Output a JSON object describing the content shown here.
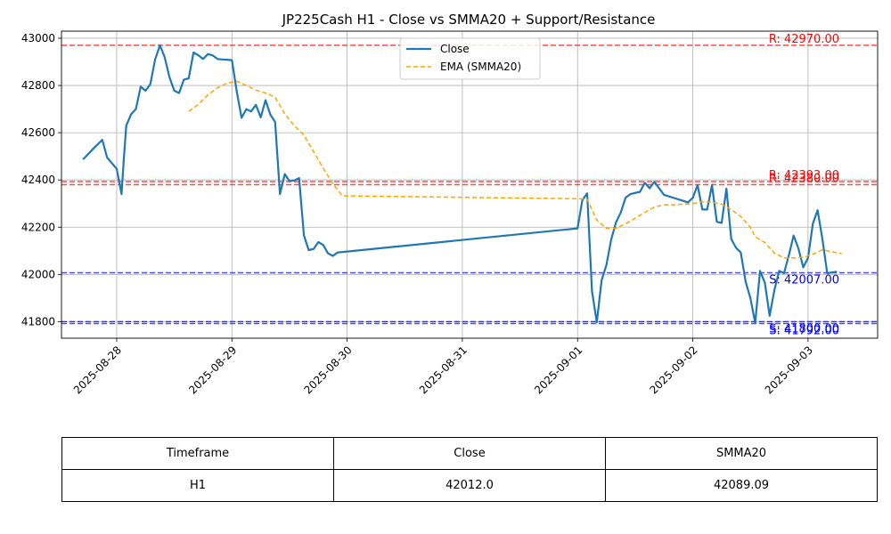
{
  "chart_data": {
    "type": "line",
    "title": "JP225Cash H1 - Close vs SMMA20 + Support/Resistance",
    "xlabel": "",
    "ylabel": "",
    "ylim": [
      41730,
      43030
    ],
    "xlim": [
      "2025-08-27 12:30",
      "2025-09-03 14:30"
    ],
    "y_ticks": [
      41800,
      42000,
      42200,
      42400,
      42600,
      42800,
      43000
    ],
    "x_ticks": [
      "2025-08-28",
      "2025-08-29",
      "2025-08-30",
      "2025-08-31",
      "2025-09-01",
      "2025-09-02",
      "2025-09-03"
    ],
    "grid": true,
    "legend_position": "top-center",
    "series": [
      {
        "name": "Close",
        "color": "#1f77b4",
        "style": "solid",
        "points": [
          [
            "2025-08-27 17:00",
            42487
          ],
          [
            "2025-08-27 19:00",
            42530
          ],
          [
            "2025-08-27 21:00",
            42570
          ],
          [
            "2025-08-27 22:00",
            42495
          ],
          [
            "2025-08-28 00:00",
            42447
          ],
          [
            "2025-08-28 01:00",
            42340
          ],
          [
            "2025-08-28 01:30",
            42490
          ],
          [
            "2025-08-28 02:00",
            42630
          ],
          [
            "2025-08-28 03:00",
            42678
          ],
          [
            "2025-08-28 04:00",
            42700
          ],
          [
            "2025-08-28 05:00",
            42795
          ],
          [
            "2025-08-28 06:00",
            42778
          ],
          [
            "2025-08-28 07:00",
            42805
          ],
          [
            "2025-08-28 08:00",
            42910
          ],
          [
            "2025-08-28 09:00",
            42970
          ],
          [
            "2025-08-28 10:00",
            42920
          ],
          [
            "2025-08-28 11:00",
            42835
          ],
          [
            "2025-08-28 12:00",
            42778
          ],
          [
            "2025-08-28 13:00",
            42768
          ],
          [
            "2025-08-28 14:00",
            42825
          ],
          [
            "2025-08-28 15:00",
            42830
          ],
          [
            "2025-08-28 16:00",
            42940
          ],
          [
            "2025-08-28 17:00",
            42928
          ],
          [
            "2025-08-28 18:00",
            42912
          ],
          [
            "2025-08-28 19:00",
            42933
          ],
          [
            "2025-08-28 20:00",
            42927
          ],
          [
            "2025-08-28 21:00",
            42912
          ],
          [
            "2025-08-28 22:00",
            42910
          ],
          [
            "2025-08-28 23:00",
            42909
          ],
          [
            "2025-08-29 00:00",
            42907
          ],
          [
            "2025-08-29 01:00",
            42775
          ],
          [
            "2025-08-29 02:00",
            42663
          ],
          [
            "2025-08-29 03:00",
            42700
          ],
          [
            "2025-08-29 04:00",
            42690
          ],
          [
            "2025-08-29 05:00",
            42718
          ],
          [
            "2025-08-29 06:00",
            42665
          ],
          [
            "2025-08-29 07:00",
            42738
          ],
          [
            "2025-08-29 08:00",
            42677
          ],
          [
            "2025-08-29 09:00",
            42645
          ],
          [
            "2025-08-29 10:00",
            42340
          ],
          [
            "2025-08-29 11:00",
            42425
          ],
          [
            "2025-08-29 12:00",
            42395
          ],
          [
            "2025-08-29 13:00",
            42398
          ],
          [
            "2025-08-29 14:00",
            42408
          ],
          [
            "2025-08-29 15:00",
            42165
          ],
          [
            "2025-08-29 16:00",
            42103
          ],
          [
            "2025-08-29 17:00",
            42108
          ],
          [
            "2025-08-29 18:00",
            42137
          ],
          [
            "2025-08-29 19:00",
            42125
          ],
          [
            "2025-08-29 20:00",
            42090
          ],
          [
            "2025-08-29 21:00",
            42078
          ],
          [
            "2025-08-29 22:00",
            42093
          ],
          [
            "2025-09-01 00:00",
            42195
          ],
          [
            "2025-09-01 01:00",
            42315
          ],
          [
            "2025-09-01 02:00",
            42343
          ],
          [
            "2025-09-01 03:00",
            41930
          ],
          [
            "2025-09-01 04:00",
            41797
          ],
          [
            "2025-09-01 05:00",
            41975
          ],
          [
            "2025-09-01 06:00",
            42040
          ],
          [
            "2025-09-01 07:00",
            42148
          ],
          [
            "2025-09-01 08:00",
            42220
          ],
          [
            "2025-09-01 09:00",
            42262
          ],
          [
            "2025-09-01 10:00",
            42325
          ],
          [
            "2025-09-01 11:00",
            42340
          ],
          [
            "2025-09-01 13:00",
            42350
          ],
          [
            "2025-09-01 14:00",
            42388
          ],
          [
            "2025-09-01 15:00",
            42365
          ],
          [
            "2025-09-01 16:00",
            42392
          ],
          [
            "2025-09-01 18:00",
            42337
          ],
          [
            "2025-09-01 23:00",
            42305
          ],
          [
            "2025-09-02 00:00",
            42325
          ],
          [
            "2025-09-02 01:00",
            42378
          ],
          [
            "2025-09-02 02:00",
            42275
          ],
          [
            "2025-09-02 03:00",
            42275
          ],
          [
            "2025-09-02 04:00",
            42378
          ],
          [
            "2025-09-02 05:00",
            42223
          ],
          [
            "2025-09-02 06:00",
            42218
          ],
          [
            "2025-09-02 07:00",
            42363
          ],
          [
            "2025-09-02 08:00",
            42150
          ],
          [
            "2025-09-02 09:00",
            42113
          ],
          [
            "2025-09-02 10:00",
            42093
          ],
          [
            "2025-09-02 11:00",
            41970
          ],
          [
            "2025-09-02 12:00",
            41900
          ],
          [
            "2025-09-02 13:00",
            41795
          ],
          [
            "2025-09-02 14:00",
            42015
          ],
          [
            "2025-09-02 15:00",
            41965
          ],
          [
            "2025-09-02 16:00",
            41825
          ],
          [
            "2025-09-02 17:00",
            41935
          ],
          [
            "2025-09-02 18:00",
            42015
          ],
          [
            "2025-09-02 19:00",
            42005
          ],
          [
            "2025-09-02 20:00",
            42080
          ],
          [
            "2025-09-02 21:00",
            42165
          ],
          [
            "2025-09-02 22:00",
            42110
          ],
          [
            "2025-09-02 23:00",
            42030
          ],
          [
            "2025-09-03 00:00",
            42070
          ],
          [
            "2025-09-03 01:00",
            42215
          ],
          [
            "2025-09-03 02:00",
            42272
          ],
          [
            "2025-09-03 03:00",
            42150
          ],
          [
            "2025-09-03 04:00",
            42005
          ],
          [
            "2025-09-03 06:00",
            42012
          ]
        ]
      },
      {
        "name": "EMA (SMMA20)",
        "color": "#ffa500",
        "style": "dashed",
        "points": [
          [
            "2025-08-28 15:00",
            42690
          ],
          [
            "2025-08-28 17:00",
            42720
          ],
          [
            "2025-08-28 19:00",
            42760
          ],
          [
            "2025-08-28 21:00",
            42790
          ],
          [
            "2025-08-28 23:00",
            42810
          ],
          [
            "2025-08-29 01:00",
            42818
          ],
          [
            "2025-08-29 03:00",
            42800
          ],
          [
            "2025-08-29 05:00",
            42780
          ],
          [
            "2025-08-29 07:00",
            42768
          ],
          [
            "2025-08-29 09:00",
            42750
          ],
          [
            "2025-08-29 11:00",
            42680
          ],
          [
            "2025-08-29 13:00",
            42630
          ],
          [
            "2025-08-29 15:00",
            42590
          ],
          [
            "2025-08-29 17:00",
            42520
          ],
          [
            "2025-08-29 19:00",
            42450
          ],
          [
            "2025-08-29 21:00",
            42385
          ],
          [
            "2025-08-29 23:00",
            42333
          ],
          [
            "2025-09-01 01:00",
            42320
          ],
          [
            "2025-09-01 02:00",
            42318
          ],
          [
            "2025-09-01 03:00",
            42275
          ],
          [
            "2025-09-01 04:00",
            42230
          ],
          [
            "2025-09-01 06:00",
            42195
          ],
          [
            "2025-09-01 08:00",
            42195
          ],
          [
            "2025-09-01 10:00",
            42215
          ],
          [
            "2025-09-01 12:00",
            42238
          ],
          [
            "2025-09-01 14:00",
            42263
          ],
          [
            "2025-09-01 16:00",
            42285
          ],
          [
            "2025-09-01 18:00",
            42295
          ],
          [
            "2025-09-01 20:00",
            42295
          ],
          [
            "2025-09-01 22:00",
            42297
          ],
          [
            "2025-09-02 00:00",
            42300
          ],
          [
            "2025-09-02 02:00",
            42308
          ],
          [
            "2025-09-02 04:00",
            42305
          ],
          [
            "2025-09-02 06:00",
            42298
          ],
          [
            "2025-09-02 08:00",
            42275
          ],
          [
            "2025-09-02 10:00",
            42245
          ],
          [
            "2025-09-02 12:00",
            42200
          ],
          [
            "2025-09-02 13:00",
            42160
          ],
          [
            "2025-09-02 15:00",
            42135
          ],
          [
            "2025-09-02 17:00",
            42090
          ],
          [
            "2025-09-02 19:00",
            42070
          ],
          [
            "2025-09-02 21:00",
            42070
          ],
          [
            "2025-09-02 23:00",
            42072
          ],
          [
            "2025-09-03 01:00",
            42085
          ],
          [
            "2025-09-03 03:00",
            42105
          ],
          [
            "2025-09-03 05:00",
            42095
          ],
          [
            "2025-09-03 07:00",
            42089
          ]
        ]
      }
    ],
    "levels": [
      {
        "kind": "resistance",
        "value": 42970,
        "label": "R: 42970.00",
        "color": "#ff0000"
      },
      {
        "kind": "resistance",
        "value": 42393,
        "label": "R: 42393.00",
        "color": "#ff0000"
      },
      {
        "kind": "resistance",
        "value": 42380,
        "label": "R: 42380.00",
        "color": "#ff0000"
      },
      {
        "kind": "support",
        "value": 42007,
        "label": "S: 42007.00",
        "color": "#0000ff"
      },
      {
        "kind": "support",
        "value": 41800,
        "label": "S: 41800.00",
        "color": "#0000ff"
      },
      {
        "kind": "support",
        "value": 41792,
        "label": "S: 41792.00",
        "color": "#0000ff"
      }
    ]
  },
  "table": {
    "headers": [
      "Timeframe",
      "Close",
      "SMMA20"
    ],
    "rows": [
      [
        "H1",
        "42012.0",
        "42089.09"
      ]
    ]
  }
}
